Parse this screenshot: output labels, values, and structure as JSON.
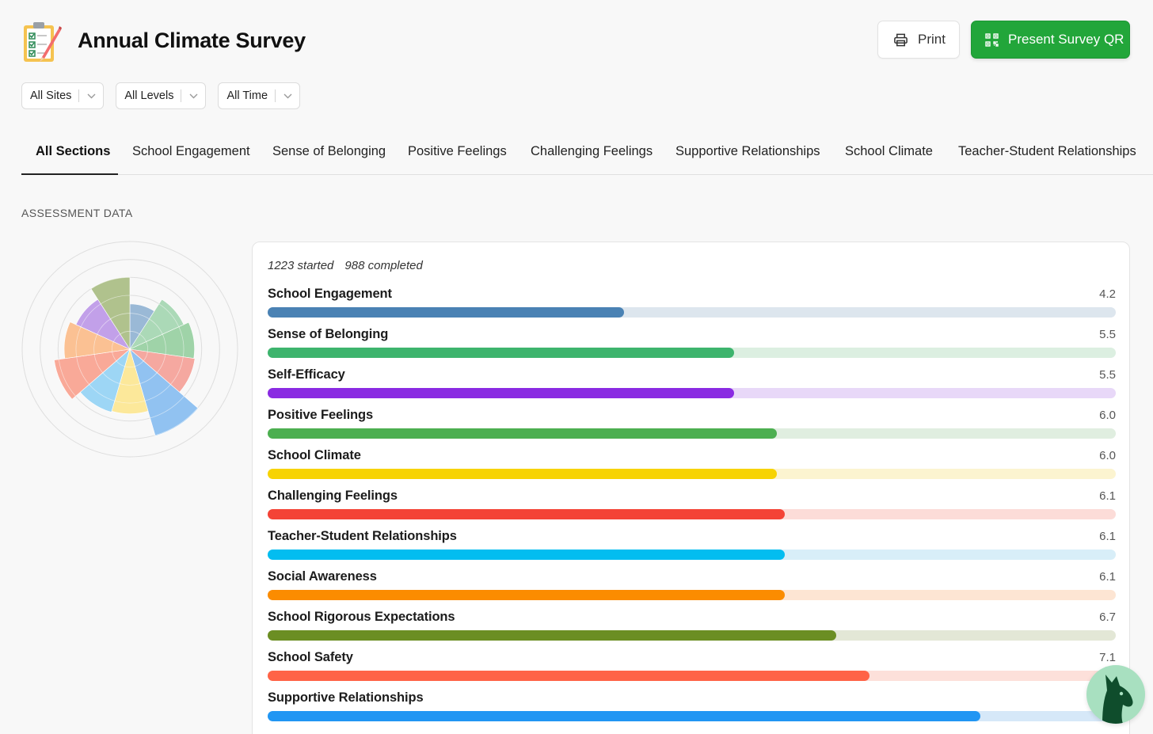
{
  "header": {
    "title": "Annual Climate Survey",
    "logo_icon": "clipboard-checklist-icon",
    "print_label": "Print",
    "qr_label": "Present Survey QR"
  },
  "filters": [
    {
      "label": "All Sites"
    },
    {
      "label": "All Levels"
    },
    {
      "label": "All Time"
    }
  ],
  "tabs": [
    {
      "label": "All Sections",
      "active": true
    },
    {
      "label": "School Engagement"
    },
    {
      "label": "Sense of Belonging"
    },
    {
      "label": "Positive Feelings"
    },
    {
      "label": "Challenging Feelings"
    },
    {
      "label": "Supportive Relationships"
    },
    {
      "label": "School Climate"
    },
    {
      "label": "Teacher-Student Relationships"
    }
  ],
  "section_label": "ASSESSMENT DATA",
  "stats": {
    "started": "1223 started",
    "completed": "988 completed"
  },
  "chart_data": {
    "type": "bar",
    "orientation": "horizontal",
    "xlim": [
      0,
      10
    ],
    "categories": [
      "School Engagement",
      "Sense of Belonging",
      "Self-Efficacy",
      "Positive Feelings",
      "School Climate",
      "Challenging Feelings",
      "Teacher-Student Relationships",
      "Social Awareness",
      "School Rigorous Expectations",
      "School Safety",
      "Supportive Relationships"
    ],
    "values": [
      4.2,
      5.5,
      5.5,
      6.0,
      6.0,
      6.1,
      6.1,
      6.1,
      6.7,
      7.1,
      8.4
    ],
    "value_labels": [
      "4.2",
      "5.5",
      "5.5",
      "6.0",
      "6.0",
      "6.1",
      "6.1",
      "6.1",
      "6.7",
      "7.1",
      ""
    ],
    "colors": [
      "#4a82b4",
      "#3db46d",
      "#8a2be2",
      "#4caf50",
      "#f7d302",
      "#f44336",
      "#03bdf0",
      "#fb8c00",
      "#6b8e23",
      "#ff6347",
      "#2196f3"
    ],
    "track_colors": [
      "#dde6ee",
      "#dcefe1",
      "#e8d8f8",
      "#e0eee0",
      "#fcf4d0",
      "#fcdcd8",
      "#d8eef8",
      "#fde5d3",
      "#e3e7d6",
      "#fde0da",
      "#d6e8f8"
    ]
  },
  "radar": {
    "type": "polar-area",
    "colors": [
      "#8aaed0",
      "#9ed4ac",
      "#8fcc9a",
      "#f59a90",
      "#7fb8f0",
      "#fde58a",
      "#8dd0f5",
      "#f99b87",
      "#fbb781",
      "#b991e6",
      "#a3b87a"
    ],
    "values": [
      4.2,
      5.5,
      6.0,
      6.1,
      8.4,
      6.0,
      6.1,
      7.1,
      6.1,
      5.5,
      6.7
    ]
  },
  "mascot_icon": "llama-icon"
}
